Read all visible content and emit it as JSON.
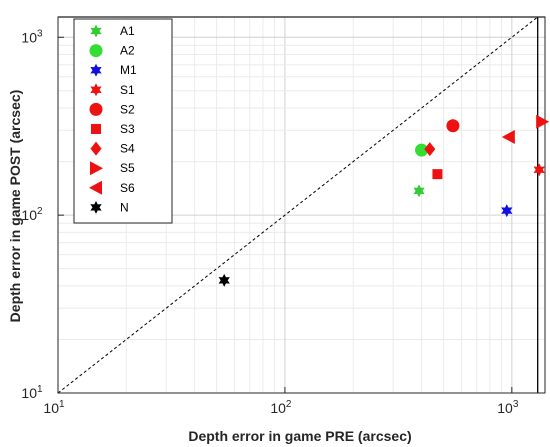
{
  "chart_data": {
    "type": "scatter",
    "xlabel": "Depth error in game PRE (arcsec)",
    "ylabel": "Depth error in game POST (arcsec)",
    "xscale": "log",
    "yscale": "log",
    "xlim": [
      10,
      1400
    ],
    "ylim": [
      10,
      1300
    ],
    "grid": "minor",
    "legend_position": "top-left",
    "reference_line": "y = x (dashed)",
    "threshold": 1300,
    "x_tick_labels": [
      {
        "base": "10",
        "exp": "1"
      },
      {
        "base": "10",
        "exp": "2"
      },
      {
        "base": "10",
        "exp": "3"
      }
    ],
    "y_tick_labels": [
      {
        "base": "10",
        "exp": "1"
      },
      {
        "base": "10",
        "exp": "2"
      },
      {
        "base": "10",
        "exp": "3"
      }
    ],
    "series": [
      {
        "name": "A1",
        "marker": "hexagram",
        "color": "#33cc33",
        "points": [
          [
            390,
            137
          ]
        ]
      },
      {
        "name": "A2",
        "marker": "circle",
        "color": "#33dd33",
        "points": [
          [
            400,
            232
          ]
        ]
      },
      {
        "name": "M1",
        "marker": "hexagram",
        "color": "#1111dd",
        "points": [
          [
            950,
            106
          ]
        ]
      },
      {
        "name": "S1",
        "marker": "hexagram",
        "color": "#ee1111",
        "points": [
          [
            1320,
            180
          ]
        ]
      },
      {
        "name": "S2",
        "marker": "circle",
        "color": "#ee1111",
        "points": [
          [
            550,
            318
          ]
        ]
      },
      {
        "name": "S3",
        "marker": "square",
        "color": "#ee1111",
        "points": [
          [
            470,
            170
          ]
        ]
      },
      {
        "name": "S4",
        "marker": "diamond",
        "color": "#ee1111",
        "points": [
          [
            435,
            235
          ]
        ]
      },
      {
        "name": "S5",
        "marker": "triangle-right",
        "color": "#ee1111",
        "points": [
          [
            1360,
            335
          ]
        ]
      },
      {
        "name": "S6",
        "marker": "triangle-left",
        "color": "#ee1111",
        "points": [
          [
            970,
            275
          ]
        ]
      },
      {
        "name": "N",
        "marker": "hexagram",
        "color": "#000000",
        "points": [
          [
            54,
            43
          ]
        ]
      }
    ]
  }
}
